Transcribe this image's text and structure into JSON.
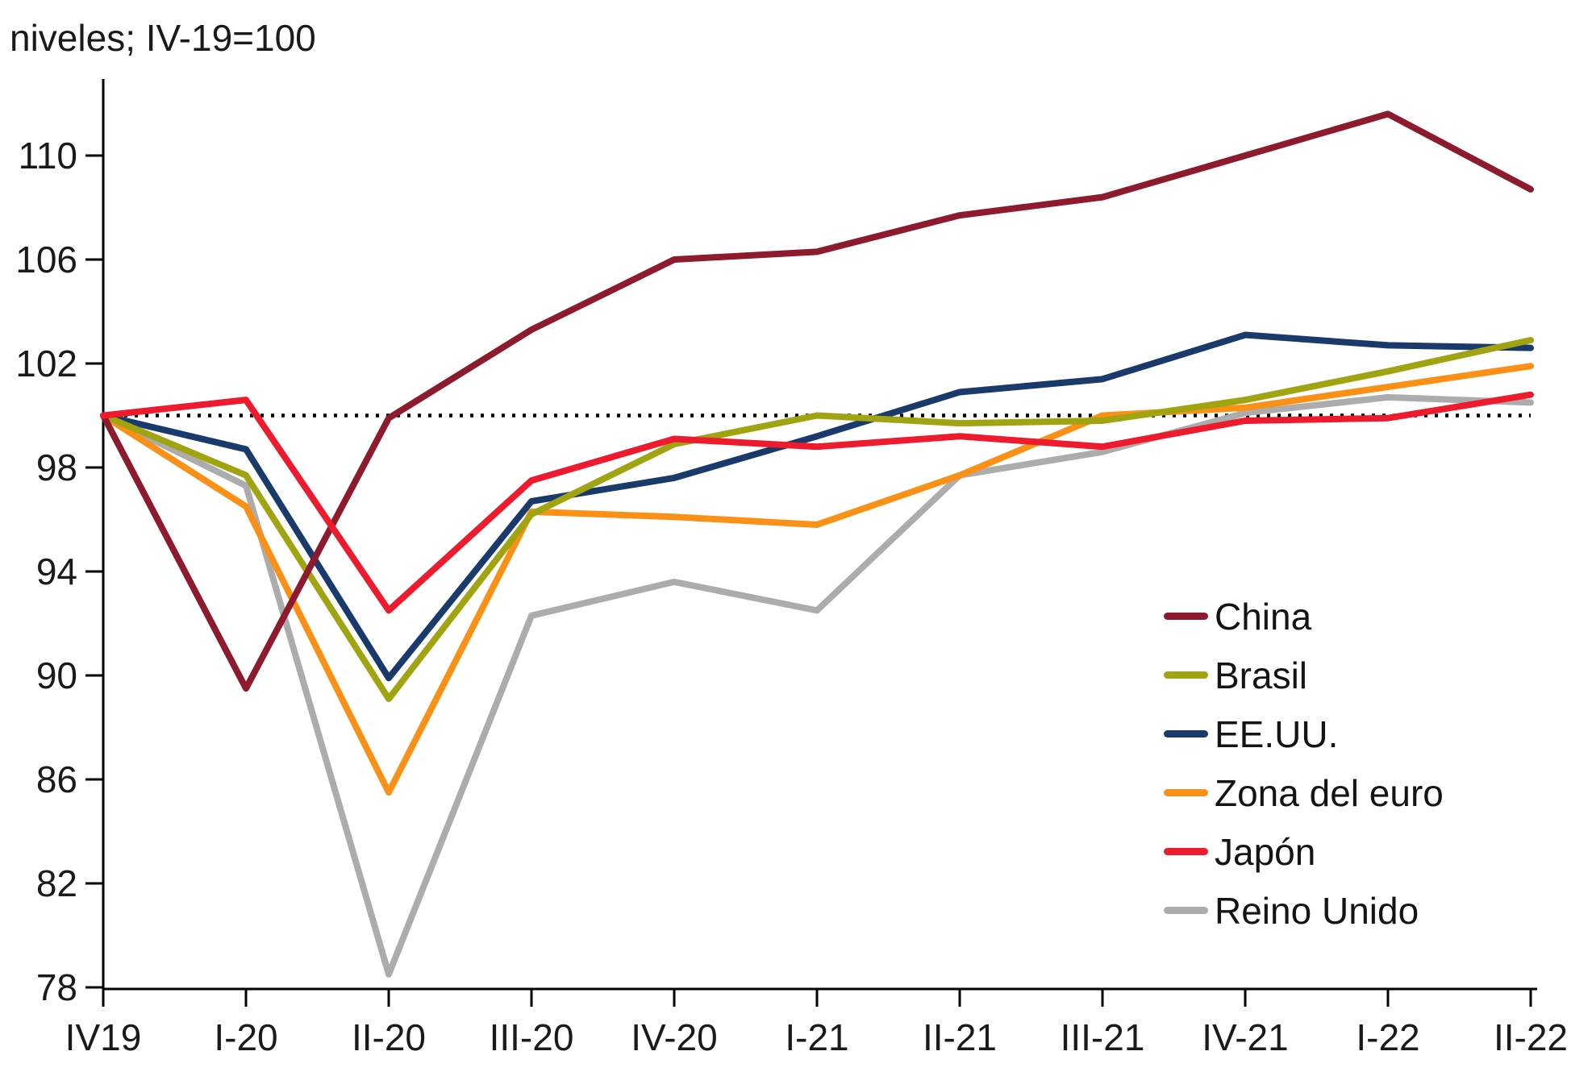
{
  "title": "niveles; IV-19=100",
  "colors": {
    "axis": "#000000",
    "text": "#1a1a1a",
    "reference_line": "#000000",
    "china": "#8D1B2D",
    "brasil": "#A0A411",
    "eeuu": "#1A3A6B",
    "zona_del_euro": "#FB9016",
    "japon": "#ED1B2D",
    "reino_unido": "#ACACAC"
  },
  "chart_data": {
    "type": "line",
    "title": "niveles; IV-19=100",
    "xlabel": "",
    "ylabel": "",
    "categories": [
      "IV19",
      "I-20",
      "II-20",
      "III-20",
      "IV-20",
      "I-21",
      "II-21",
      "III-21",
      "IV-21",
      "I-22",
      "II-22"
    ],
    "yticks": [
      78,
      82,
      86,
      90,
      94,
      98,
      102,
      106,
      110
    ],
    "ylim": [
      77.9,
      112.9
    ],
    "ref_line": 100,
    "grid": false,
    "legend_position": "right-middle",
    "series": [
      {
        "name": "China",
        "color": "#8D1B2D",
        "values": [
          100,
          89.5,
          99.9,
          103.3,
          106.0,
          106.3,
          107.7,
          108.4,
          110.0,
          111.6,
          108.7
        ]
      },
      {
        "name": "Brasil",
        "color": "#A0A411",
        "values": [
          100,
          97.7,
          89.1,
          96.2,
          98.9,
          100.0,
          99.7,
          99.8,
          100.6,
          101.7,
          102.9
        ]
      },
      {
        "name": "EE.UU.",
        "color": "#1A3A6B",
        "values": [
          100,
          98.7,
          89.9,
          96.7,
          97.6,
          99.2,
          100.9,
          101.4,
          103.1,
          102.7,
          102.6
        ]
      },
      {
        "name": "Zona del euro",
        "color": "#FB9016",
        "values": [
          100,
          96.5,
          85.5,
          96.3,
          96.1,
          95.8,
          97.7,
          100.0,
          100.3,
          101.1,
          101.9
        ]
      },
      {
        "name": "Japón",
        "color": "#ED1B2D",
        "values": [
          100,
          100.6,
          92.5,
          97.5,
          99.1,
          98.8,
          99.2,
          98.8,
          99.8,
          99.9,
          100.8
        ]
      },
      {
        "name": "Reino Unido",
        "color": "#ACACAC",
        "values": [
          100,
          97.3,
          78.5,
          92.3,
          93.6,
          92.5,
          97.7,
          98.6,
          100.1,
          100.7,
          100.5
        ]
      }
    ]
  }
}
